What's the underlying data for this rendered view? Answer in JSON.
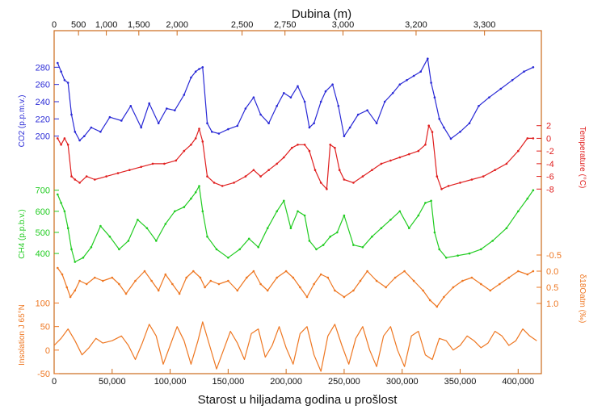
{
  "chart_data": {
    "type": "line",
    "top_axis": {
      "label": "Dubina (m)",
      "tick_labels": [
        "0",
        "500",
        "1,000",
        "1,500",
        "2,000",
        "2,500",
        "2,750",
        "3,000",
        "3,200",
        "3,300"
      ],
      "tick_age_kyr": [
        0,
        21,
        45,
        73,
        106,
        162,
        199,
        249,
        312,
        371
      ]
    },
    "bottom_axis": {
      "label": "Starost u hiljadama godina u prošlost",
      "ticks": [
        0,
        50000,
        100000,
        150000,
        200000,
        250000,
        300000,
        350000,
        400000
      ],
      "tick_labels": [
        "0",
        "50,000",
        "100,000",
        "150,000",
        "200,000",
        "250,000",
        "300,000",
        "350,000",
        "400,000"
      ],
      "range": [
        0,
        420000
      ]
    },
    "series": [
      {
        "key": "co2",
        "label": "CO2 (p.p.m.v.)",
        "color": "#2a2ad6",
        "side": "left",
        "ticks": [
          200,
          220,
          240,
          260,
          280
        ],
        "ylim": [
          180,
          300
        ],
        "x": [
          3,
          6,
          9,
          12,
          15,
          18,
          22,
          26,
          32,
          40,
          48,
          58,
          66,
          75,
          82,
          90,
          97,
          104,
          112,
          118,
          122,
          125,
          128,
          132,
          136,
          142,
          150,
          158,
          165,
          172,
          178,
          185,
          192,
          198,
          204,
          210,
          216,
          220,
          224,
          230,
          234,
          240,
          245,
          250,
          255,
          262,
          270,
          278,
          285,
          292,
          298,
          304,
          310,
          316,
          322,
          325,
          328,
          332,
          336,
          342,
          350,
          358,
          366,
          375,
          385,
          395,
          405,
          413
        ],
        "y": [
          285,
          275,
          265,
          262,
          225,
          205,
          195,
          200,
          210,
          205,
          222,
          218,
          235,
          210,
          238,
          215,
          232,
          230,
          248,
          268,
          275,
          278,
          280,
          215,
          205,
          203,
          208,
          212,
          232,
          245,
          225,
          215,
          235,
          250,
          245,
          258,
          240,
          210,
          215,
          240,
          252,
          260,
          235,
          200,
          210,
          225,
          230,
          215,
          240,
          250,
          260,
          265,
          270,
          275,
          290,
          262,
          245,
          220,
          210,
          197,
          205,
          215,
          235,
          245,
          255,
          265,
          275,
          280
        ]
      },
      {
        "key": "temperature",
        "label": "Temperature (°C)",
        "color": "#e02020",
        "side": "right",
        "ticks": [
          2,
          0,
          -2,
          -4,
          -6,
          -8
        ],
        "ylim": [
          -10,
          4
        ],
        "x": [
          3,
          6,
          9,
          12,
          15,
          18,
          22,
          28,
          35,
          45,
          55,
          65,
          75,
          85,
          95,
          105,
          112,
          118,
          122,
          125,
          128,
          132,
          138,
          145,
          155,
          165,
          172,
          178,
          185,
          192,
          198,
          205,
          210,
          216,
          220,
          225,
          230,
          235,
          238,
          242,
          246,
          250,
          258,
          266,
          274,
          282,
          290,
          298,
          306,
          314,
          320,
          323,
          326,
          330,
          334,
          340,
          350,
          360,
          370,
          380,
          390,
          400,
          408,
          413
        ],
        "y": [
          0,
          -1,
          0,
          -1,
          -6,
          -6.5,
          -7,
          -6,
          -6.5,
          -6,
          -5.5,
          -5,
          -4.5,
          -4,
          -4,
          -3.5,
          -2,
          -1,
          0,
          1.5,
          -0.5,
          -6,
          -7,
          -7.5,
          -7,
          -6,
          -5,
          -6,
          -5,
          -4,
          -3,
          -1.5,
          -1,
          -1,
          -2,
          -5,
          -7,
          -8,
          -1,
          -1.5,
          -5,
          -6.5,
          -7,
          -6,
          -5,
          -4,
          -3.5,
          -3,
          -2.5,
          -2,
          -1,
          2,
          1,
          -6,
          -8,
          -7.5,
          -7,
          -6.5,
          -6,
          -5,
          -4,
          -2,
          0,
          0
        ]
      },
      {
        "key": "ch4",
        "label": "CH4 (p.p.b.v.)",
        "color": "#22cc22",
        "side": "left",
        "ticks": [
          400,
          500,
          600,
          700
        ],
        "ylim": [
          320,
          760
        ],
        "x": [
          3,
          6,
          9,
          12,
          15,
          18,
          25,
          32,
          40,
          48,
          56,
          64,
          72,
          80,
          88,
          96,
          104,
          112,
          118,
          122,
          125,
          128,
          132,
          140,
          150,
          160,
          168,
          176,
          184,
          192,
          198,
          204,
          210,
          216,
          220,
          226,
          232,
          238,
          244,
          250,
          258,
          266,
          274,
          282,
          290,
          298,
          306,
          314,
          320,
          325,
          328,
          332,
          338,
          348,
          358,
          368,
          378,
          390,
          400,
          408,
          413
        ],
        "y": [
          680,
          640,
          600,
          520,
          420,
          360,
          380,
          430,
          530,
          480,
          420,
          460,
          560,
          520,
          460,
          540,
          600,
          620,
          660,
          690,
          720,
          600,
          480,
          420,
          380,
          420,
          470,
          430,
          520,
          600,
          650,
          520,
          600,
          580,
          460,
          420,
          440,
          480,
          500,
          580,
          440,
          430,
          480,
          520,
          560,
          600,
          520,
          580,
          640,
          650,
          500,
          420,
          380,
          390,
          400,
          420,
          460,
          520,
          600,
          660,
          700
        ]
      },
      {
        "key": "d18o",
        "label": "δ18Oatm (‰)",
        "color": "#ee7722",
        "side": "right",
        "ticks": [
          -0.5,
          0.0,
          0.5,
          1.0
        ],
        "ylim": [
          1.6,
          -0.9
        ],
        "x": [
          3,
          7,
          11,
          14,
          18,
          22,
          28,
          35,
          42,
          50,
          56,
          62,
          70,
          78,
          84,
          90,
          96,
          102,
          108,
          114,
          120,
          126,
          130,
          135,
          142,
          150,
          158,
          166,
          172,
          178,
          184,
          192,
          200,
          206,
          212,
          218,
          224,
          230,
          236,
          242,
          250,
          258,
          264,
          270,
          278,
          286,
          294,
          302,
          310,
          318,
          324,
          330,
          336,
          344,
          352,
          360,
          368,
          376,
          384,
          392,
          400,
          408,
          413
        ],
        "y": [
          -0.1,
          0.1,
          0.5,
          0.8,
          0.6,
          0.3,
          0.4,
          0.2,
          0.3,
          0.2,
          0.4,
          0.7,
          0.3,
          0.0,
          0.3,
          0.6,
          0.1,
          0.4,
          0.7,
          0.2,
          0.0,
          0.2,
          0.5,
          0.3,
          0.4,
          0.3,
          0.6,
          0.2,
          0.0,
          0.4,
          0.6,
          0.2,
          0.0,
          0.2,
          0.5,
          0.8,
          0.4,
          0.1,
          0.2,
          0.6,
          0.8,
          0.6,
          0.3,
          0.0,
          0.3,
          0.5,
          0.2,
          0.0,
          0.3,
          0.6,
          0.9,
          1.1,
          0.8,
          0.5,
          0.3,
          0.2,
          0.4,
          0.6,
          0.4,
          0.2,
          0.0,
          0.1,
          0.0
        ]
      },
      {
        "key": "insolation",
        "label": "Insolation J 65°N",
        "color": "#ee7722",
        "side": "left",
        "ticks": [
          -50,
          0,
          50,
          100
        ],
        "ylim": [
          -50,
          130
        ],
        "x": [
          0,
          6,
          12,
          18,
          24,
          30,
          36,
          42,
          50,
          58,
          64,
          70,
          76,
          82,
          88,
          94,
          100,
          106,
          112,
          118,
          124,
          128,
          134,
          140,
          146,
          152,
          158,
          164,
          170,
          176,
          182,
          188,
          194,
          200,
          206,
          212,
          218,
          224,
          230,
          236,
          242,
          248,
          254,
          260,
          266,
          272,
          278,
          284,
          290,
          296,
          302,
          308,
          314,
          320,
          326,
          332,
          338,
          344,
          350,
          356,
          362,
          368,
          374,
          380,
          386,
          392,
          398,
          404,
          410,
          416
        ],
        "y": [
          10,
          25,
          45,
          20,
          -10,
          5,
          25,
          15,
          20,
          30,
          10,
          -20,
          15,
          55,
          30,
          -30,
          10,
          50,
          20,
          -30,
          20,
          60,
          10,
          -40,
          0,
          40,
          15,
          -20,
          35,
          45,
          -15,
          10,
          50,
          5,
          -30,
          35,
          50,
          -10,
          -45,
          30,
          55,
          10,
          -30,
          25,
          50,
          0,
          -35,
          30,
          50,
          0,
          -35,
          30,
          40,
          -10,
          -20,
          25,
          20,
          0,
          10,
          30,
          20,
          5,
          15,
          40,
          30,
          10,
          20,
          45,
          30,
          20
        ]
      }
    ]
  }
}
